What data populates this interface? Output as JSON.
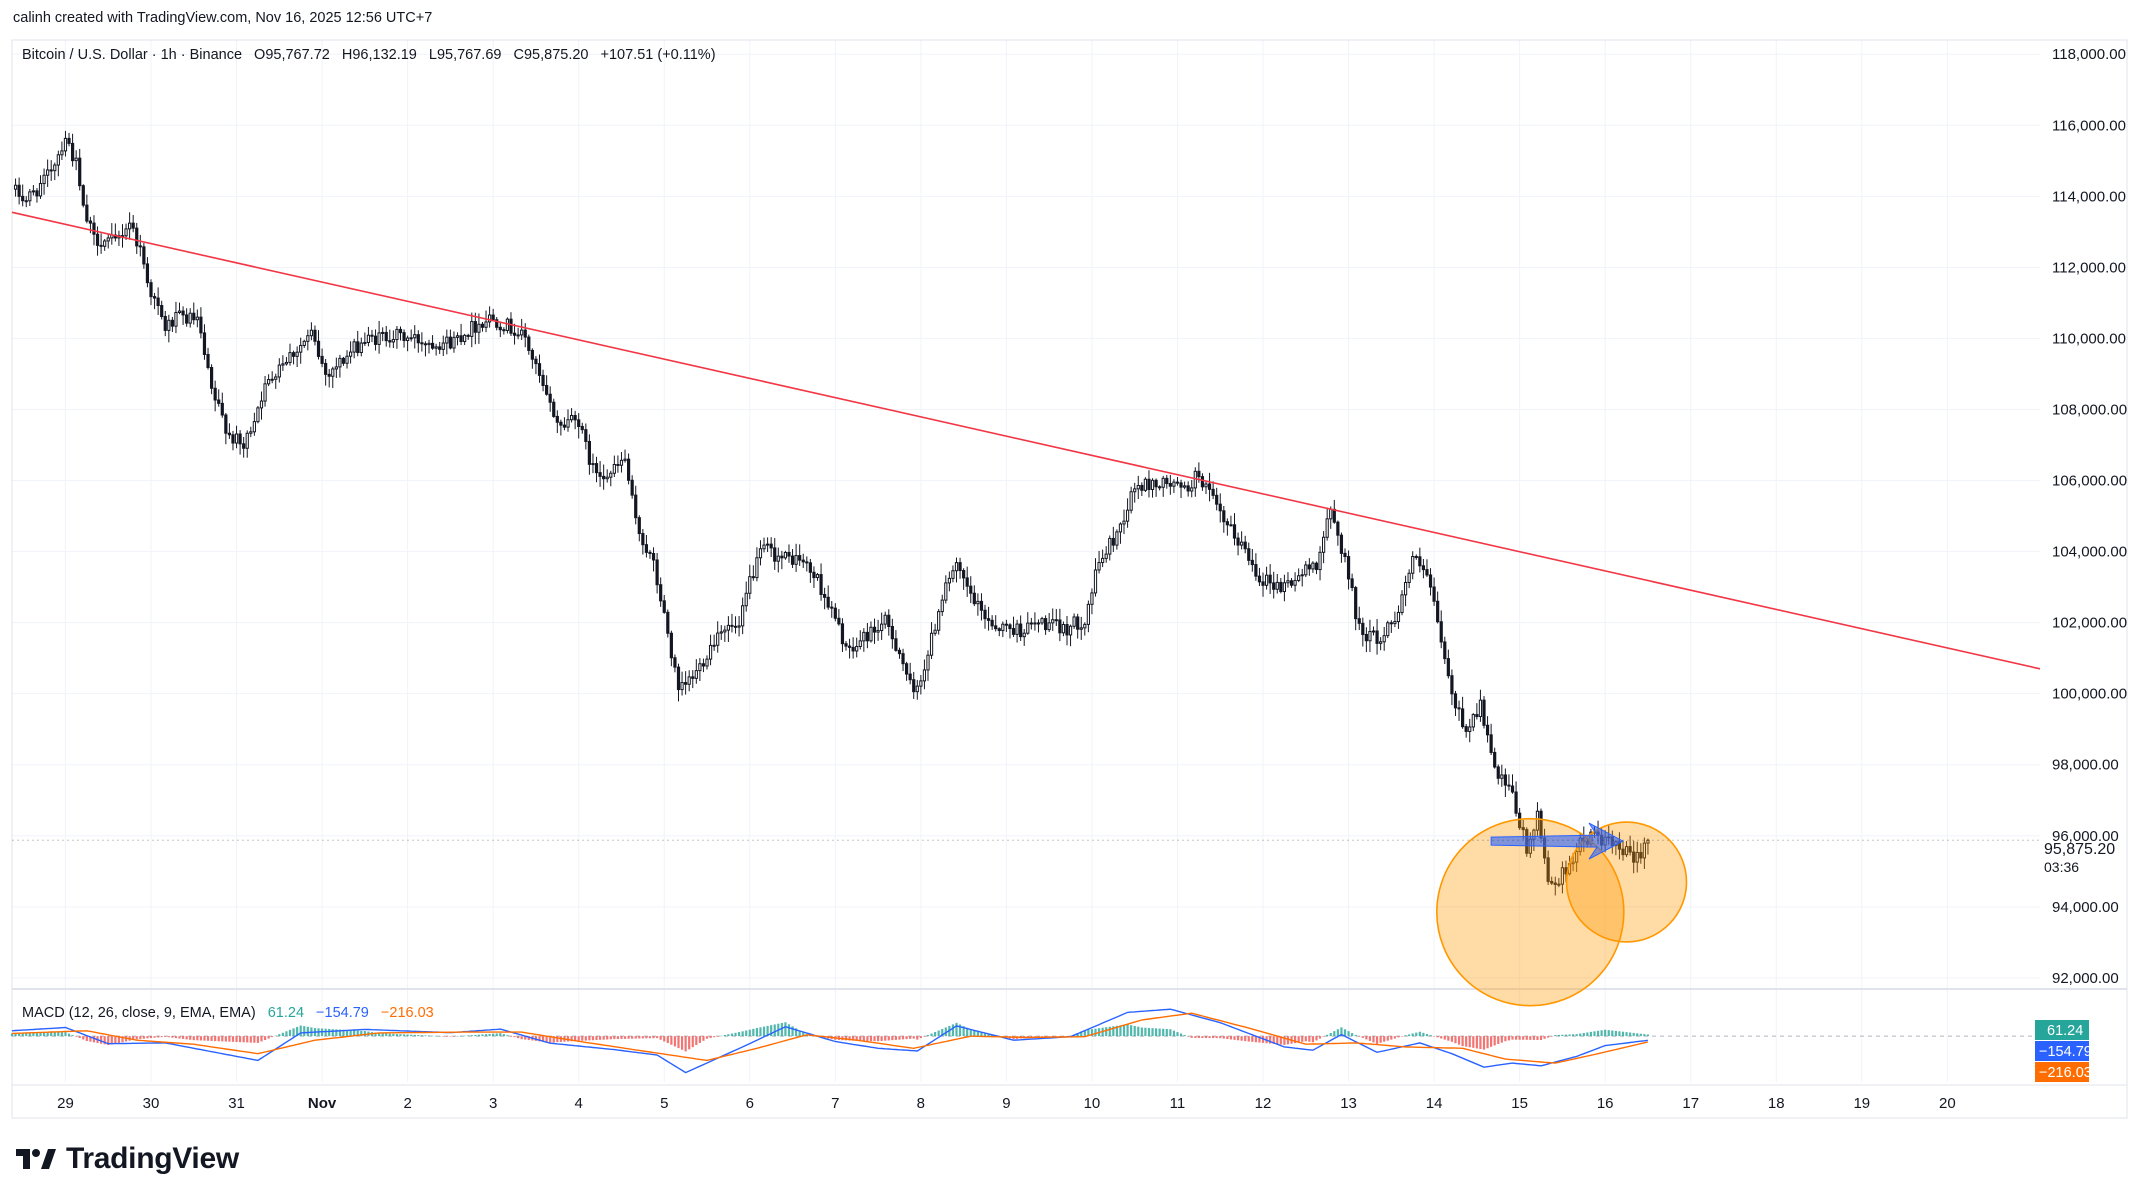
{
  "attribution": "calinh created with TradingView.com, Nov 16, 2025 12:56 UTC+7",
  "brand": "TradingView",
  "chart_data": [
    {
      "type": "candlestick",
      "symbol_line": "Bitcoin / U.S. Dollar · 1h · Binance",
      "ohlc": {
        "open": "O95,767.72",
        "high": "H96,132.19",
        "low": "L95,767.69",
        "close": "C95,875.20",
        "change": "+107.51 (+0.11%)"
      },
      "price_axis": {
        "ticks": [
          92000,
          94000,
          96000,
          98000,
          100000,
          102000,
          104000,
          106000,
          108000,
          110000,
          112000,
          114000,
          116000,
          118000
        ],
        "tick_labels": [
          "92,000.00",
          "94,000.00",
          "96,000.00",
          "98,000.00",
          "100,000.00",
          "102,000.00",
          "104,000.00",
          "106,000.00",
          "108,000.00",
          "110,000.00",
          "112,000.00",
          "114,000.00",
          "116,000.00",
          "118,000.00"
        ],
        "ylim": [
          91800,
          118400
        ]
      },
      "time_axis": {
        "x_range_days": [
          "2025-10-28T09:00",
          "2025-11-21T02:00"
        ],
        "ticks": [
          {
            "date": "2025-10-29",
            "label": "29"
          },
          {
            "date": "2025-10-30",
            "label": "30"
          },
          {
            "date": "2025-10-31",
            "label": "31"
          },
          {
            "date": "2025-11-01",
            "label": "Nov"
          },
          {
            "date": "2025-11-02",
            "label": "2"
          },
          {
            "date": "2025-11-03",
            "label": "3"
          },
          {
            "date": "2025-11-04",
            "label": "4"
          },
          {
            "date": "2025-11-05",
            "label": "5"
          },
          {
            "date": "2025-11-06",
            "label": "6"
          },
          {
            "date": "2025-11-07",
            "label": "7"
          },
          {
            "date": "2025-11-08",
            "label": "8"
          },
          {
            "date": "2025-11-09",
            "label": "9"
          },
          {
            "date": "2025-11-10",
            "label": "10"
          },
          {
            "date": "2025-11-11",
            "label": "11"
          },
          {
            "date": "2025-11-12",
            "label": "12"
          },
          {
            "date": "2025-11-13",
            "label": "13"
          },
          {
            "date": "2025-11-14",
            "label": "14"
          },
          {
            "date": "2025-11-15",
            "label": "15"
          },
          {
            "date": "2025-11-16",
            "label": "16"
          },
          {
            "date": "2025-11-17",
            "label": "17"
          },
          {
            "date": "2025-11-18",
            "label": "18"
          },
          {
            "date": "2025-11-19",
            "label": "19"
          },
          {
            "date": "2025-11-20",
            "label": "20"
          }
        ]
      },
      "price_keypoints": [
        [
          "2025-10-28T09:00",
          114200
        ],
        [
          "2025-10-28T13:00",
          113900
        ],
        [
          "2025-10-28T18:00",
          114400
        ],
        [
          "2025-10-28T22:00",
          115200
        ],
        [
          "2025-10-29T00:00",
          115700
        ],
        [
          "2025-10-29T03:00",
          114900
        ],
        [
          "2025-10-29T05:00",
          113600
        ],
        [
          "2025-10-29T08:00",
          112800
        ],
        [
          "2025-10-29T14:00",
          112700
        ],
        [
          "2025-10-29T18:00",
          113300
        ],
        [
          "2025-10-29T21:00",
          112500
        ],
        [
          "2025-10-30T00:00",
          111300
        ],
        [
          "2025-10-30T04:00",
          110300
        ],
        [
          "2025-10-30T08:00",
          110600
        ],
        [
          "2025-10-30T13:00",
          110500
        ],
        [
          "2025-10-30T17:00",
          108500
        ],
        [
          "2025-10-30T22:00",
          107300
        ],
        [
          "2025-10-31T02:00",
          106900
        ],
        [
          "2025-10-31T07:00",
          108400
        ],
        [
          "2025-10-31T12:00",
          109300
        ],
        [
          "2025-10-31T17:00",
          109700
        ],
        [
          "2025-10-31T21:00",
          110100
        ],
        [
          "2025-11-01T01:00",
          109000
        ],
        [
          "2025-11-01T06:00",
          109400
        ],
        [
          "2025-11-01T11:00",
          109900
        ],
        [
          "2025-11-01T19:00",
          110100
        ],
        [
          "2025-11-02T06:00",
          109900
        ],
        [
          "2025-11-02T12:00",
          109900
        ],
        [
          "2025-11-02T18:00",
          110300
        ],
        [
          "2025-11-02T23:00",
          110600
        ],
        [
          "2025-11-03T05:00",
          110300
        ],
        [
          "2025-11-03T09:00",
          110000
        ],
        [
          "2025-11-03T15:00",
          108300
        ],
        [
          "2025-11-03T19:00",
          107500
        ],
        [
          "2025-11-03T23:00",
          107900
        ],
        [
          "2025-11-04T04:00",
          106300
        ],
        [
          "2025-11-04T09:00",
          106200
        ],
        [
          "2025-11-04T13:00",
          106600
        ],
        [
          "2025-11-04T16:00",
          104800
        ],
        [
          "2025-11-04T21:00",
          103600
        ],
        [
          "2025-11-05T01:00",
          101700
        ],
        [
          "2025-11-05T04:00",
          100000
        ],
        [
          "2025-11-05T09:00",
          100600
        ],
        [
          "2025-11-05T16:00",
          101900
        ],
        [
          "2025-11-05T21:00",
          101800
        ],
        [
          "2025-11-06T00:00",
          103200
        ],
        [
          "2025-11-06T04:00",
          104100
        ],
        [
          "2025-11-06T09:00",
          103800
        ],
        [
          "2025-11-06T14:00",
          103800
        ],
        [
          "2025-11-06T19:00",
          103200
        ],
        [
          "2025-11-06T23:00",
          102300
        ],
        [
          "2025-11-07T04:00",
          101100
        ],
        [
          "2025-11-07T08:00",
          101600
        ],
        [
          "2025-11-07T14:00",
          102000
        ],
        [
          "2025-11-07T18:00",
          101200
        ],
        [
          "2025-11-07T22:00",
          99900
        ],
        [
          "2025-11-08T02:00",
          101100
        ],
        [
          "2025-11-08T07:00",
          103200
        ],
        [
          "2025-11-08T10:00",
          103500
        ],
        [
          "2025-11-08T16:00",
          102400
        ],
        [
          "2025-11-08T21:00",
          101900
        ],
        [
          "2025-11-09T04:00",
          101800
        ],
        [
          "2025-11-09T10:00",
          102000
        ],
        [
          "2025-11-09T16:00",
          101800
        ],
        [
          "2025-11-09T22:00",
          102100
        ],
        [
          "2025-11-10T02:00",
          103700
        ],
        [
          "2025-11-10T07:00",
          104500
        ],
        [
          "2025-11-10T12:00",
          105800
        ],
        [
          "2025-11-10T17:00",
          105900
        ],
        [
          "2025-11-10T22:00",
          105900
        ],
        [
          "2025-11-11T02:00",
          105700
        ],
        [
          "2025-11-11T06:00",
          106200
        ],
        [
          "2025-11-11T09:00",
          105600
        ],
        [
          "2025-11-11T13:00",
          104800
        ],
        [
          "2025-11-11T18:00",
          104200
        ],
        [
          "2025-11-11T23:00",
          103300
        ],
        [
          "2025-11-12T05:00",
          103000
        ],
        [
          "2025-11-12T10:00",
          103300
        ],
        [
          "2025-11-12T15:00",
          103700
        ],
        [
          "2025-11-12T19:00",
          105100
        ],
        [
          "2025-11-12T23:00",
          103800
        ],
        [
          "2025-11-13T03:00",
          101800
        ],
        [
          "2025-11-13T09:00",
          101500
        ],
        [
          "2025-11-13T14:00",
          102400
        ],
        [
          "2025-11-13T18:00",
          103800
        ],
        [
          "2025-11-13T22:00",
          103300
        ],
        [
          "2025-11-14T01:00",
          102000
        ],
        [
          "2025-11-14T05:00",
          99900
        ],
        [
          "2025-11-14T09:00",
          99000
        ],
        [
          "2025-11-14T13:00",
          99700
        ],
        [
          "2025-11-14T17:00",
          97800
        ],
        [
          "2025-11-14T22:00",
          97100
        ],
        [
          "2025-11-15T02:00",
          95600
        ],
        [
          "2025-11-15T05:00",
          96500
        ],
        [
          "2025-11-15T08:00",
          94800
        ],
        [
          "2025-11-15T11:00",
          94700
        ],
        [
          "2025-11-15T14:00",
          95300
        ],
        [
          "2025-11-15T18:00",
          95900
        ],
        [
          "2025-11-15T22:00",
          96000
        ],
        [
          "2025-11-16T02:00",
          95700
        ],
        [
          "2025-11-16T06:00",
          95500
        ],
        [
          "2025-11-16T08:00",
          95250
        ],
        [
          "2025-11-16T11:00",
          95750
        ],
        [
          "2025-11-16T12:00",
          95875
        ]
      ],
      "annotations": {
        "trendline": {
          "from": [
            "2025-10-28T09:00",
            113550
          ],
          "to": [
            "2025-11-21T02:00",
            100700
          ],
          "color": "#f23645"
        },
        "arrow": {
          "from": [
            "2025-11-14T16:00",
            95850
          ],
          "to": [
            "2025-11-16T05:00",
            95850
          ],
          "color": "#2962ff"
        },
        "circles": [
          {
            "center": [
              "2025-11-15T03:00",
              93850
            ],
            "color": "#ff9800"
          },
          {
            "center": [
              "2025-11-16T06:00",
              94700
            ],
            "color": "#ff9800"
          }
        ]
      },
      "last_price": {
        "label": "95,875.20",
        "countdown": "03:36",
        "value": 95875.2
      }
    },
    {
      "type": "macd",
      "title": "MACD (12, 26, close, 9, EMA, EMA)",
      "values": {
        "histogram": "61.24",
        "macd": "−154.79",
        "signal": "−216.03"
      },
      "colors": {
        "macd": "#2962ff",
        "signal": "#ff6d00",
        "hist_up": "#26a69a",
        "hist_down": "#ef5350"
      },
      "macd_keypoints": [
        [
          "2025-10-28T09:00",
          200
        ],
        [
          "2025-10-29T00:00",
          320
        ],
        [
          "2025-10-29T12:00",
          -280
        ],
        [
          "2025-10-30T04:00",
          -250
        ],
        [
          "2025-10-30T20:00",
          -650
        ],
        [
          "2025-10-31T06:00",
          -900
        ],
        [
          "2025-10-31T18:00",
          120
        ],
        [
          "2025-11-01T12:00",
          250
        ],
        [
          "2025-11-02T12:00",
          130
        ],
        [
          "2025-11-03T02:00",
          260
        ],
        [
          "2025-11-03T16:00",
          -260
        ],
        [
          "2025-11-04T10:00",
          -500
        ],
        [
          "2025-11-04T22:00",
          -700
        ],
        [
          "2025-11-05T06:00",
          -1350
        ],
        [
          "2025-11-05T22:00",
          -400
        ],
        [
          "2025-11-06T10:00",
          350
        ],
        [
          "2025-11-07T00:00",
          -200
        ],
        [
          "2025-11-07T12:00",
          -450
        ],
        [
          "2025-11-07T23:00",
          -550
        ],
        [
          "2025-11-08T10:00",
          380
        ],
        [
          "2025-11-09T02:00",
          -150
        ],
        [
          "2025-11-09T18:00",
          -20
        ],
        [
          "2025-11-10T10:00",
          880
        ],
        [
          "2025-11-10T22:00",
          1000
        ],
        [
          "2025-11-11T12:00",
          500
        ],
        [
          "2025-11-12T06:00",
          -400
        ],
        [
          "2025-11-12T14:00",
          -520
        ],
        [
          "2025-11-12T22:00",
          60
        ],
        [
          "2025-11-13T08:00",
          -600
        ],
        [
          "2025-11-13T20:00",
          -250
        ],
        [
          "2025-11-14T05:00",
          -650
        ],
        [
          "2025-11-14T14:00",
          -1150
        ],
        [
          "2025-11-14T22:00",
          -1000
        ],
        [
          "2025-11-15T06:00",
          -1100
        ],
        [
          "2025-11-15T16:00",
          -750
        ],
        [
          "2025-11-16T00:00",
          -350
        ],
        [
          "2025-11-16T12:00",
          -155
        ]
      ],
      "signal_keypoints": [
        [
          "2025-10-28T09:00",
          100
        ],
        [
          "2025-10-29T06:00",
          200
        ],
        [
          "2025-10-29T20:00",
          -150
        ],
        [
          "2025-10-30T12:00",
          -300
        ],
        [
          "2025-10-31T06:00",
          -650
        ],
        [
          "2025-10-31T22:00",
          -150
        ],
        [
          "2025-11-01T16:00",
          120
        ],
        [
          "2025-11-02T16:00",
          150
        ],
        [
          "2025-11-03T08:00",
          150
        ],
        [
          "2025-11-03T22:00",
          -150
        ],
        [
          "2025-11-04T18:00",
          -550
        ],
        [
          "2025-11-05T12:00",
          -900
        ],
        [
          "2025-11-06T02:00",
          -450
        ],
        [
          "2025-11-06T16:00",
          50
        ],
        [
          "2025-11-07T06:00",
          -150
        ],
        [
          "2025-11-07T22:00",
          -450
        ],
        [
          "2025-11-08T14:00",
          0
        ],
        [
          "2025-11-09T06:00",
          -50
        ],
        [
          "2025-11-09T22:00",
          -20
        ],
        [
          "2025-11-10T14:00",
          600
        ],
        [
          "2025-11-11T04:00",
          850
        ],
        [
          "2025-11-11T20:00",
          300
        ],
        [
          "2025-11-12T12:00",
          -300
        ],
        [
          "2025-11-13T02:00",
          -250
        ],
        [
          "2025-11-13T16:00",
          -400
        ],
        [
          "2025-11-14T08:00",
          -450
        ],
        [
          "2025-11-14T20:00",
          -850
        ],
        [
          "2025-11-15T10:00",
          -1000
        ],
        [
          "2025-11-15T22:00",
          -650
        ],
        [
          "2025-11-16T12:00",
          -216
        ]
      ],
      "ylim": [
        -1700,
        1600
      ]
    }
  ]
}
